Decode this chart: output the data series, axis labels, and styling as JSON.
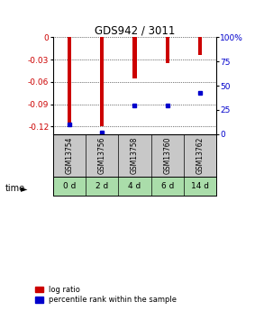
{
  "title": "GDS942 / 3011",
  "samples": [
    "GSM13754",
    "GSM13756",
    "GSM13758",
    "GSM13760",
    "GSM13762"
  ],
  "time_labels": [
    "0 d",
    "2 d",
    "4 d",
    "6 d",
    "14 d"
  ],
  "log_ratios": [
    -0.115,
    -0.12,
    -0.055,
    -0.035,
    -0.024
  ],
  "percentile_ranks": [
    10.0,
    2.0,
    30.0,
    30.0,
    43.0
  ],
  "ylim_left": [
    -0.13,
    0.0
  ],
  "yticks_left": [
    0,
    -0.03,
    -0.06,
    -0.09,
    -0.12
  ],
  "yticks_right": [
    0,
    25,
    50,
    75,
    100
  ],
  "bar_color": "#cc0000",
  "percentile_color": "#0000cc",
  "bar_width": 0.12,
  "grid_color": "#000000",
  "bg_plot": "#ffffff",
  "bg_label_top": "#c8c8c8",
  "bg_label_bottom": "#aaddaa",
  "legend_bar": "log ratio",
  "legend_pct": "percentile rank within the sample"
}
